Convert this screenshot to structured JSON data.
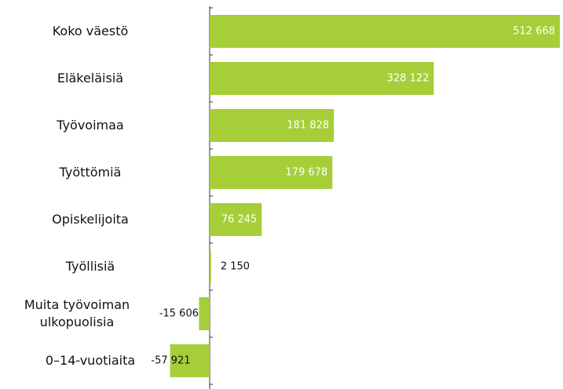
{
  "chart_data": {
    "type": "barh",
    "categories": [
      "Koko väestö",
      "Eläkeläisiä",
      "Työvoimaa",
      "Työttömiä",
      "Opiskelijoita",
      "Työllisiä",
      "Muita työvoiman ulkopuolisia",
      "0–14-vuotiaita"
    ],
    "values": [
      512668,
      328122,
      181828,
      179678,
      76245,
      2150,
      -15606,
      -57921
    ],
    "value_labels": [
      "512 668",
      "328 122",
      "181 828",
      "179 678",
      "76 245",
      "2 150",
      "-15 606",
      "-57 921"
    ],
    "color": "#a6ce39"
  }
}
